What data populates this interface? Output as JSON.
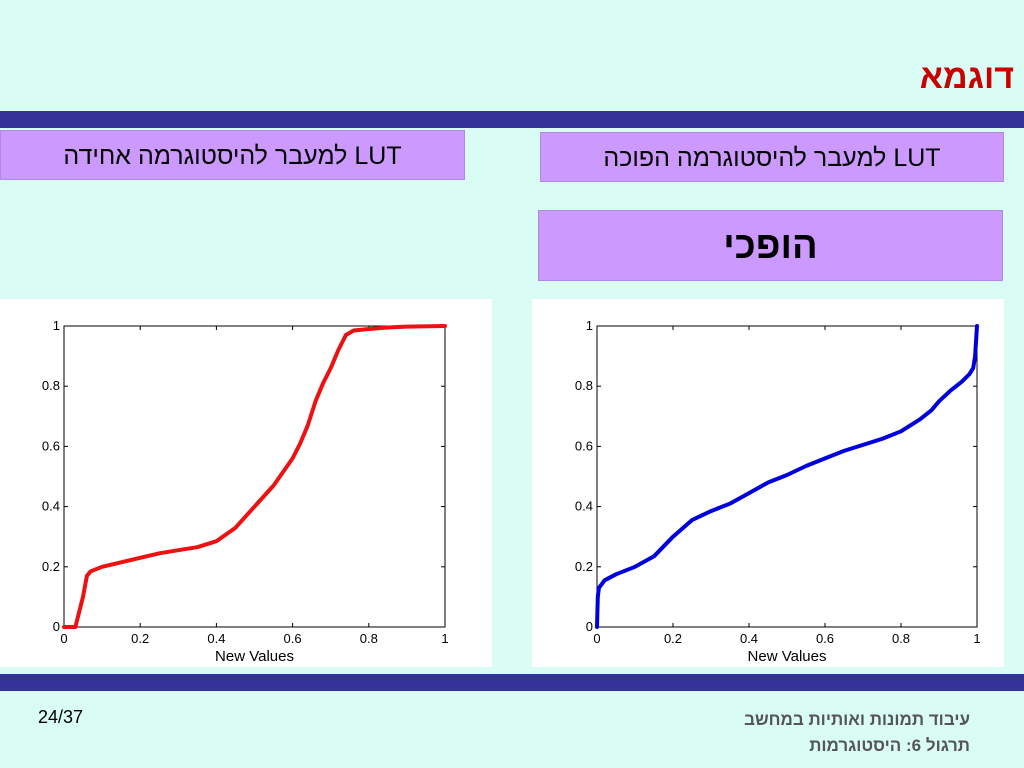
{
  "slide": {
    "title": "דוגמא",
    "label_left": "LUT למעבר להיסטוגרמה אחידה",
    "label_right": "LUT למעבר להיסטוגרמה הפוכה",
    "label_inverse": "הופכי",
    "page_number": "24/37",
    "footer_line1": "עיבוד תמונות ואותיות במחשב",
    "footer_line2": "תרגול 6: היסטוגרמות"
  },
  "colors": {
    "background": "#d9fcf5",
    "title": "#cc0000",
    "bars": "#333399",
    "label_box": "#cc99ff",
    "left_curve": "#ee1111",
    "right_curve": "#0000dd"
  },
  "chart_data": [
    {
      "type": "line",
      "xlabel": "New Values",
      "ylabel": "",
      "xlim": [
        0,
        1
      ],
      "ylim": [
        0,
        1
      ],
      "xticks": [
        "0",
        "0.2",
        "0.4",
        "0.6",
        "0.8",
        "1"
      ],
      "yticks": [
        "0",
        "0.2",
        "0.4",
        "0.6",
        "0.8",
        "1"
      ],
      "grid": false,
      "series": [
        {
          "x": [
            0,
            0.03,
            0.04,
            0.05,
            0.06,
            0.07,
            0.08,
            0.1,
            0.15,
            0.2,
            0.25,
            0.3,
            0.35,
            0.4,
            0.45,
            0.5,
            0.55,
            0.6,
            0.62,
            0.64,
            0.66,
            0.68,
            0.7,
            0.72,
            0.74,
            0.76,
            0.8,
            0.85,
            0.9,
            1.0
          ],
          "y": [
            0,
            0,
            0.05,
            0.1,
            0.17,
            0.185,
            0.19,
            0.2,
            0.215,
            0.23,
            0.245,
            0.255,
            0.265,
            0.285,
            0.33,
            0.4,
            0.47,
            0.56,
            0.61,
            0.67,
            0.75,
            0.81,
            0.86,
            0.92,
            0.97,
            0.985,
            0.99,
            0.995,
            0.998,
            1.0
          ]
        }
      ]
    },
    {
      "type": "line",
      "xlabel": "New Values",
      "ylabel": "",
      "xlim": [
        0,
        1
      ],
      "ylim": [
        0,
        1
      ],
      "xticks": [
        "0",
        "0.2",
        "0.4",
        "0.6",
        "0.8",
        "1"
      ],
      "yticks": [
        "0",
        "0.2",
        "0.4",
        "0.6",
        "0.8",
        "1"
      ],
      "grid": false,
      "series": [
        {
          "x": [
            0,
            0.002,
            0.005,
            0.02,
            0.05,
            0.1,
            0.15,
            0.2,
            0.25,
            0.3,
            0.35,
            0.4,
            0.45,
            0.5,
            0.55,
            0.6,
            0.65,
            0.7,
            0.75,
            0.8,
            0.85,
            0.88,
            0.9,
            0.93,
            0.96,
            0.98,
            0.99,
            0.995,
            1.0
          ],
          "y": [
            0,
            0.1,
            0.13,
            0.155,
            0.175,
            0.2,
            0.235,
            0.3,
            0.355,
            0.385,
            0.41,
            0.445,
            0.48,
            0.505,
            0.535,
            0.56,
            0.585,
            0.605,
            0.625,
            0.65,
            0.69,
            0.72,
            0.75,
            0.785,
            0.815,
            0.84,
            0.86,
            0.9,
            1.0
          ]
        }
      ]
    }
  ]
}
